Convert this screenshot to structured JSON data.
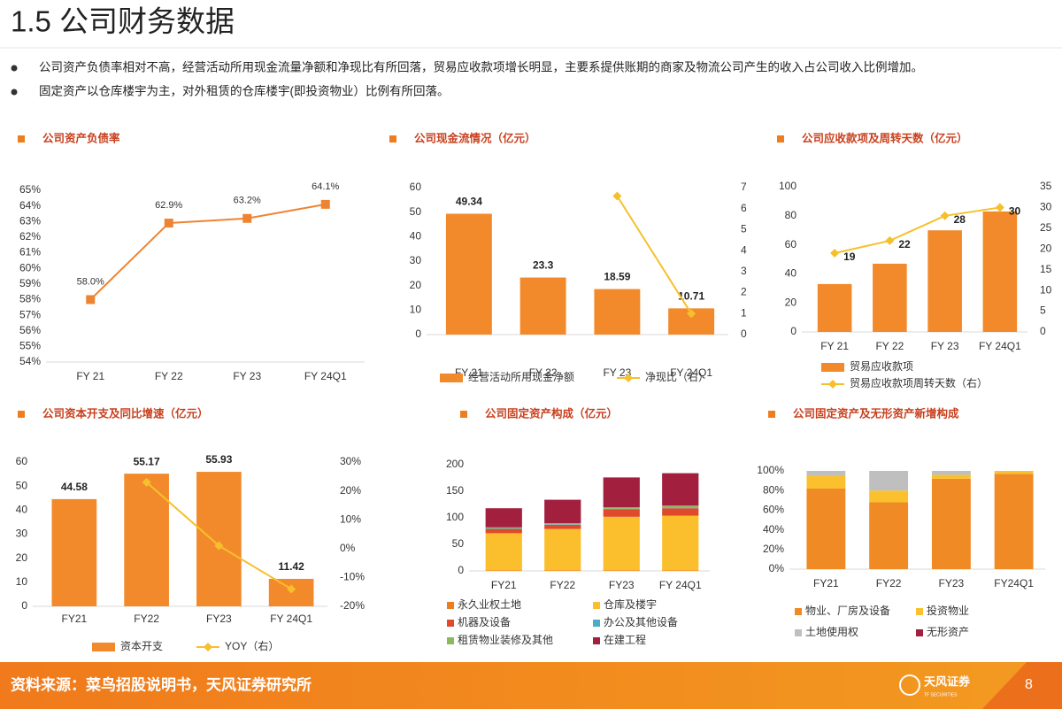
{
  "header": {
    "title": "1.5 公司财务数据"
  },
  "bullets": [
    "公司资产负债率相对不高，经营活动所用现金流量净额和净现比有所回落，贸易应收款项增长明显，主要系提供账期的商家及物流公司产生的收入占公司收入比例增加。",
    "固定资产以仓库楼宇为主，对外租赁的仓库楼宇(即投资物业）比例有所回落。"
  ],
  "chart_data": [
    {
      "type": "line",
      "title": "公司资产负债率",
      "categories": [
        "FY 21",
        "FY 22",
        "FY 23",
        "FY 24Q1"
      ],
      "values": [
        58.0,
        62.9,
        63.2,
        64.1
      ],
      "value_labels": [
        "58.0%",
        "62.9%",
        "63.2%",
        "64.1%"
      ],
      "color": "#ee8432",
      "marker": "square",
      "ylim": [
        54,
        65
      ],
      "yticks": [
        {
          "value": 54,
          "label": "54%"
        },
        {
          "value": 55,
          "label": "55%"
        },
        {
          "value": 56,
          "label": "56%"
        },
        {
          "value": 57,
          "label": "57%"
        },
        {
          "value": 58,
          "label": "58%"
        },
        {
          "value": 59,
          "label": "59%"
        },
        {
          "value": 60,
          "label": "60%"
        },
        {
          "value": 61,
          "label": "61%"
        },
        {
          "value": 62,
          "label": "62%"
        },
        {
          "value": 63,
          "label": "63%"
        },
        {
          "value": 64,
          "label": "64%"
        },
        {
          "value": 65,
          "label": "65%"
        }
      ]
    },
    {
      "type": "bar",
      "title": "公司现金流情况（亿元）",
      "categories": [
        "FY 21",
        "FY 22",
        "FY 23",
        "FY 24Q1"
      ],
      "series": [
        {
          "name": "经营活动所用现金净额",
          "type": "bar",
          "color": "#f28a2c",
          "values": [
            49.34,
            23.3,
            18.59,
            10.71
          ],
          "show_labels": true
        },
        {
          "name": "净现比（右）",
          "type": "line",
          "axis": "y2",
          "color": "#f6c02c",
          "marker": "diamond",
          "values": [
            null,
            null,
            6.6,
            1.0
          ]
        }
      ],
      "ylim": [
        0,
        60
      ],
      "yticks": [
        0,
        10,
        20,
        30,
        40,
        50,
        60
      ],
      "y2lim": [
        0,
        7
      ],
      "y2ticks": [
        0,
        1,
        2,
        3,
        4,
        5,
        6,
        7
      ]
    },
    {
      "type": "bar",
      "title": "公司应收款项及周转天数（亿元）",
      "categories": [
        "FY 21",
        "FY 22",
        "FY 23",
        "FY 24Q1"
      ],
      "series": [
        {
          "name": "贸易应收款项",
          "type": "bar",
          "color": "#f28a2c",
          "values": [
            33,
            47,
            70,
            83
          ]
        },
        {
          "name": "贸易应收款项周转天数（右）",
          "type": "line",
          "axis": "y2",
          "color": "#f6c02c",
          "marker": "diamond",
          "values": [
            19,
            22,
            28,
            30
          ],
          "show_labels": true
        }
      ],
      "ylim": [
        0,
        100
      ],
      "yticks": [
        0,
        20,
        40,
        60,
        80,
        100
      ],
      "y2lim": [
        0,
        35
      ],
      "y2ticks": [
        0,
        5,
        10,
        15,
        20,
        25,
        30,
        35
      ]
    },
    {
      "type": "bar",
      "title": "公司资本开支及同比增速（亿元）",
      "categories": [
        "FY21",
        "FY22",
        "FY23",
        "FY 24Q1"
      ],
      "series": [
        {
          "name": "资本开支",
          "type": "bar",
          "color": "#f28a2c",
          "values": [
            44.58,
            55.17,
            55.93,
            11.42
          ],
          "show_labels": true
        },
        {
          "name": "YOY（右）",
          "type": "line",
          "axis": "y2",
          "color": "#f6c02c",
          "marker": "diamond",
          "values": [
            null,
            23,
            1,
            -14
          ]
        }
      ],
      "ylim": [
        0,
        60
      ],
      "yticks": [
        0,
        10,
        20,
        30,
        40,
        50,
        60
      ],
      "y2lim": [
        -20,
        30
      ],
      "y2ticks": [
        {
          "value": -20,
          "label": "-20%"
        },
        {
          "value": -10,
          "label": "-10%"
        },
        {
          "value": 0,
          "label": "0%"
        },
        {
          "value": 10,
          "label": "10%"
        },
        {
          "value": 20,
          "label": "20%"
        },
        {
          "value": 30,
          "label": "30%"
        }
      ]
    },
    {
      "type": "stacked_bar",
      "title": "公司固定资产构成（亿元）",
      "categories": [
        "FY21",
        "FY22",
        "FY23",
        "FY 24Q1"
      ],
      "series": [
        {
          "name": "永久业权土地",
          "color": "#ee7d22",
          "values": [
            1,
            1,
            1,
            1
          ]
        },
        {
          "name": "仓库及楼宇",
          "color": "#fbbf2e",
          "values": [
            70,
            78,
            101,
            103
          ]
        },
        {
          "name": "机器及设备",
          "color": "#e04a2a",
          "values": [
            8,
            8,
            14,
            14
          ]
        },
        {
          "name": "办公及其他设备",
          "color": "#4bacc6",
          "values": [
            1,
            1,
            1,
            1
          ]
        },
        {
          "name": "租赁物业装修及其他",
          "color": "#8cb860",
          "values": [
            2,
            2,
            3,
            4
          ]
        },
        {
          "name": "在建工程",
          "color": "#a21f3e",
          "values": [
            36,
            44,
            56,
            61
          ]
        }
      ],
      "ylim": [
        0,
        200
      ],
      "yticks": [
        0,
        50,
        100,
        150,
        200
      ]
    },
    {
      "type": "stacked_bar",
      "title": "公司固定资产及无形资产新增构成",
      "categories": [
        "FY21",
        "FY22",
        "FY23",
        "FY24Q1"
      ],
      "series": [
        {
          "name": "物业、厂房及设备",
          "color": "#f08a24",
          "values": [
            82,
            68,
            92,
            97
          ]
        },
        {
          "name": "投资物业",
          "color": "#fbc02d",
          "values": [
            13,
            12,
            4,
            3
          ]
        },
        {
          "name": "土地使用权",
          "color": "#bfbfbf",
          "values": [
            5,
            20,
            4,
            0
          ]
        },
        {
          "name": "无形资产",
          "color": "#a21f3e",
          "values": [
            0,
            0,
            0,
            0
          ]
        }
      ],
      "ylim": [
        0,
        100
      ],
      "yticks": [
        {
          "value": 0,
          "label": "0%"
        },
        {
          "value": 20,
          "label": "20%"
        },
        {
          "value": 40,
          "label": "40%"
        },
        {
          "value": 60,
          "label": "60%"
        },
        {
          "value": 80,
          "label": "80%"
        },
        {
          "value": 100,
          "label": "100%"
        }
      ]
    }
  ],
  "footer": {
    "source": "资料来源：菜鸟招股说明书，天风证券研究所",
    "logo": "天风证券",
    "logo_sub": "TF SECURITIES",
    "page": "8"
  }
}
